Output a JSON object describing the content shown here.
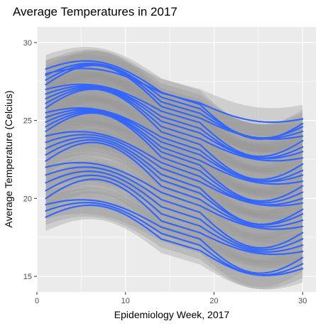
{
  "chart_data": {
    "type": "line",
    "title": "Average Temperatures in 2017",
    "xlabel": "Epidemiology Week, 2017",
    "ylabel": "Average Temperature (Celcius)",
    "xlim": [
      0,
      31.5
    ],
    "ylim": [
      14.0,
      31.0
    ],
    "x_ticks": [
      0,
      10,
      20,
      30
    ],
    "y_ticks": [
      15,
      20,
      25,
      30
    ],
    "x_tick_labels": [
      "0",
      "10",
      "20",
      "30"
    ],
    "y_tick_labels": [
      "15",
      "20",
      "25",
      "30"
    ],
    "grid": true,
    "legend": "none",
    "colors": {
      "line": "#3366FF",
      "ribbon": "#999999",
      "panel": "#EBEBEB",
      "grid": "#FFFFFF"
    },
    "x": [
      1,
      30
    ],
    "series": [
      {
        "values": [
          28.0,
          25.1
        ]
      },
      {
        "values": [
          28.3,
          24.8
        ]
      },
      {
        "values": [
          27.9,
          24.6
        ]
      },
      {
        "values": [
          27.6,
          24.3
        ]
      },
      {
        "values": [
          27.3,
          24.0
        ]
      },
      {
        "values": [
          27.0,
          23.7
        ]
      },
      {
        "values": [
          26.7,
          23.3
        ]
      },
      {
        "values": [
          26.4,
          23.0
        ]
      },
      {
        "values": [
          26.1,
          22.6
        ]
      },
      {
        "values": [
          25.8,
          22.2
        ]
      },
      {
        "values": [
          25.5,
          21.8
        ]
      },
      {
        "values": [
          25.2,
          21.5
        ]
      },
      {
        "values": [
          24.9,
          21.1
        ]
      },
      {
        "values": [
          24.6,
          20.8
        ]
      },
      {
        "values": [
          24.3,
          20.4
        ]
      },
      {
        "values": [
          24.0,
          20.0
        ]
      },
      {
        "values": [
          23.6,
          19.7
        ]
      },
      {
        "values": [
          23.2,
          19.3
        ]
      },
      {
        "values": [
          22.8,
          19.0
        ]
      },
      {
        "values": [
          22.4,
          18.6
        ]
      },
      {
        "values": [
          22.0,
          18.2
        ]
      },
      {
        "values": [
          21.5,
          17.8
        ]
      },
      {
        "values": [
          21.0,
          17.4
        ]
      },
      {
        "values": [
          20.5,
          17.0
        ]
      },
      {
        "values": [
          20.0,
          16.6
        ]
      },
      {
        "values": [
          19.6,
          16.2
        ]
      },
      {
        "values": [
          19.2,
          15.8
        ]
      },
      {
        "values": [
          18.8,
          15.5
        ]
      }
    ]
  }
}
